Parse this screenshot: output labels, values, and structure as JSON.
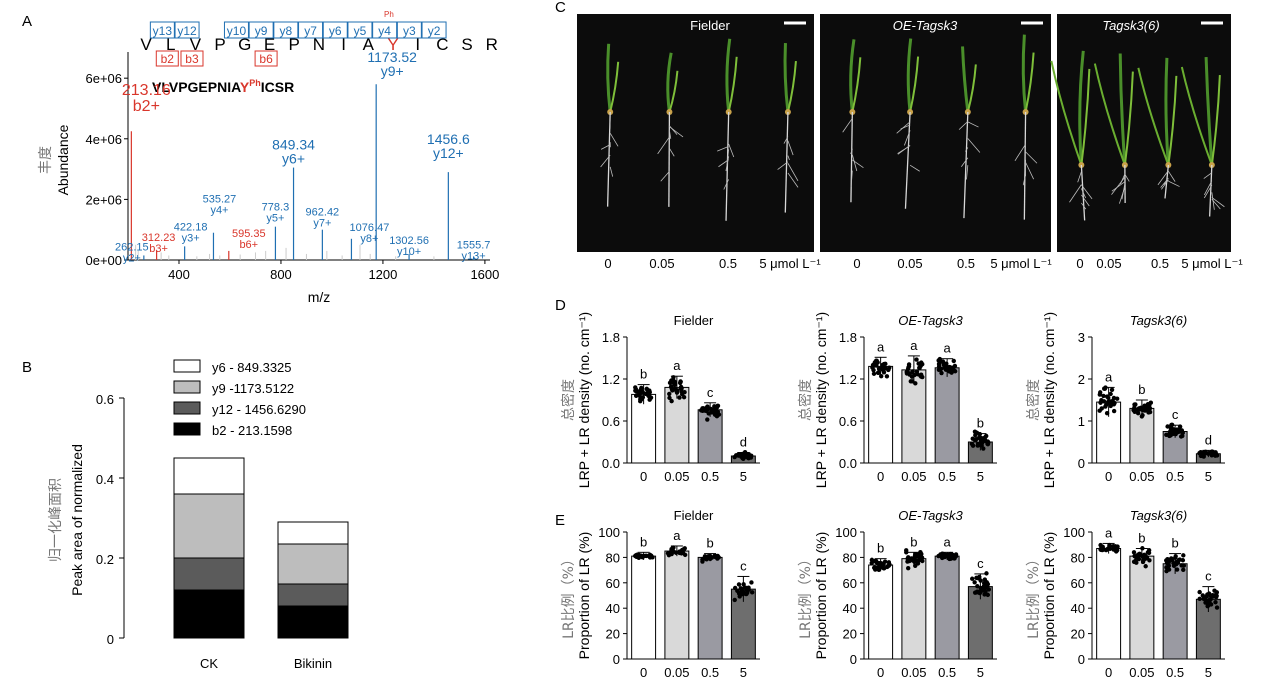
{
  "panel_letters": [
    "A",
    "B",
    "C",
    "D",
    "E"
  ],
  "colors": {
    "blue": "#1f6fb2",
    "red": "#d9362b",
    "bar0": "#ffffff",
    "bar1": "#d9d9d9",
    "bar2": "#9a9aa2",
    "bar3": "#6e6e6e",
    "stack_b2": "#000000",
    "stack_y12": "#5b5b5b",
    "stack_y9": "#bdbdbd",
    "stack_y6": "#ffffff"
  },
  "panelA": {
    "sequence": [
      "V",
      "L",
      "V",
      "P",
      "G",
      "E",
      "P",
      "N",
      "I",
      "A",
      "Y",
      "I",
      "C",
      "S",
      "R"
    ],
    "y_ions_top": [
      "y13",
      "y12",
      "y10",
      "y9",
      "y8",
      "y7",
      "y6",
      "y5",
      "y4",
      "y3",
      "y2"
    ],
    "y5_sub": "Ph",
    "b_ions": [
      "b2",
      "b3",
      "b6"
    ],
    "peptide_prefix": "VLVPGEPNIA",
    "peptide_mod": "Y",
    "peptide_mod_sup": "Ph",
    "peptide_suffix": "ICSR",
    "ylabel_cn": "丰度",
    "ylabel": "Abundance",
    "xlabel": "m/z",
    "yticks": [
      "0e+00",
      "2e+06",
      "4e+06",
      "6e+06"
    ],
    "xticks": [
      "400",
      "800",
      "1200",
      "1600"
    ]
  },
  "panelB": {
    "ylabel_cn": "归一化峰面积",
    "ylabel": "Peak area of normalized",
    "yticks": [
      "0",
      "0.2",
      "0.4",
      "0.6"
    ],
    "legend": [
      "y6 - 849.3325",
      "y9 -1173.5122",
      "y12 - 1456.6290",
      "b2 - 213.1598"
    ]
  },
  "panelC": {
    "titles": [
      "Fielder",
      "OE-Tagsk3",
      "Tagsk3(6)"
    ],
    "conc_labels": [
      "0",
      "0.05",
      "0.5",
      "5 μmol L⁻¹"
    ]
  },
  "panelD": {
    "ylabel_cn": "总密度",
    "ylabel": "LRP + LR density (no. cm⁻¹)",
    "xticks": [
      "0",
      "0.05",
      "0.5",
      "5"
    ]
  },
  "panelE": {
    "ylabel_cn": "LR比例（%）",
    "ylabel": "Proportion of LR (%)",
    "xticks": [
      "0",
      "0.05",
      "0.5",
      "5"
    ]
  },
  "chart_data": [
    {
      "id": "A",
      "type": "bar",
      "subtype": "mass-spectrum",
      "title": "VLVPGEPNIAY(Ph)ICSR",
      "xlabel": "m/z",
      "ylabel": "Abundance",
      "xlim": [
        200,
        1620
      ],
      "ylim": [
        0,
        6600000
      ],
      "x_ticks": [
        400,
        800,
        1200,
        1600
      ],
      "y_ticks": [
        0,
        2000000,
        4000000,
        6000000
      ],
      "peaks": [
        {
          "mz": 213.16,
          "intensity": 4250000,
          "label": "213.16",
          "ion": "b2+",
          "color": "red"
        },
        {
          "mz": 262.15,
          "intensity": 150000,
          "label": "262.15",
          "ion": "y2+",
          "color": "blue"
        },
        {
          "mz": 312.23,
          "intensity": 300000,
          "label": "312.23",
          "ion": "b3+",
          "color": "red"
        },
        {
          "mz": 422.18,
          "intensity": 450000,
          "label": "422.18",
          "ion": "y3+",
          "color": "blue"
        },
        {
          "mz": 535.27,
          "intensity": 900000,
          "label": "535.27",
          "ion": "y4+",
          "color": "blue"
        },
        {
          "mz": 595.35,
          "intensity": 300000,
          "label": "595.35",
          "ion": "b6+",
          "color": "red"
        },
        {
          "mz": 778.3,
          "intensity": 1100000,
          "label": "778.3",
          "ion": "y5+",
          "color": "blue"
        },
        {
          "mz": 849.34,
          "intensity": 3050000,
          "label": "849.34",
          "ion": "y6+",
          "color": "blue"
        },
        {
          "mz": 962.42,
          "intensity": 1000000,
          "label": "962.42",
          "ion": "y7+",
          "color": "blue"
        },
        {
          "mz": 1076.47,
          "intensity": 700000,
          "label": "1076.47",
          "ion": "y8+",
          "color": "blue"
        },
        {
          "mz": 1173.52,
          "intensity": 5800000,
          "label": "1173.52",
          "ion": "y9+",
          "color": "blue"
        },
        {
          "mz": 1302.56,
          "intensity": 200000,
          "label": "1302.56",
          "ion": "y10+",
          "color": "blue"
        },
        {
          "mz": 1456.6,
          "intensity": 2900000,
          "label": "1456.6",
          "ion": "y12+",
          "color": "blue"
        },
        {
          "mz": 1555.7,
          "intensity": 120000,
          "label": "1555.7",
          "ion": "y13+",
          "color": "blue"
        }
      ],
      "minor_peaks": [
        {
          "mz": 230,
          "intensity": 500000
        },
        {
          "mz": 240,
          "intensity": 300000
        },
        {
          "mz": 330,
          "intensity": 250000
        },
        {
          "mz": 360,
          "intensity": 150000
        },
        {
          "mz": 470,
          "intensity": 120000
        },
        {
          "mz": 520,
          "intensity": 200000
        },
        {
          "mz": 560,
          "intensity": 150000
        },
        {
          "mz": 640,
          "intensity": 180000
        },
        {
          "mz": 700,
          "intensity": 250000
        },
        {
          "mz": 740,
          "intensity": 300000
        },
        {
          "mz": 820,
          "intensity": 400000
        },
        {
          "mz": 900,
          "intensity": 200000
        },
        {
          "mz": 980,
          "intensity": 300000
        },
        {
          "mz": 1040,
          "intensity": 150000
        },
        {
          "mz": 1110,
          "intensity": 500000
        },
        {
          "mz": 1150,
          "intensity": 200000
        },
        {
          "mz": 1250,
          "intensity": 120000
        },
        {
          "mz": 1400,
          "intensity": 120000
        }
      ]
    },
    {
      "id": "B",
      "type": "bar",
      "subtype": "stacked",
      "ylabel": "Peak area of normalized",
      "ylim": [
        0,
        0.6
      ],
      "y_ticks": [
        0,
        0.2,
        0.4,
        0.6
      ],
      "categories": [
        "CK",
        "Bikinin"
      ],
      "series": [
        {
          "name": "b2 - 213.1598",
          "values": [
            0.12,
            0.08
          ]
        },
        {
          "name": "y12 - 1456.6290",
          "values": [
            0.08,
            0.055
          ]
        },
        {
          "name": "y9 -1173.5122",
          "values": [
            0.16,
            0.1
          ]
        },
        {
          "name": "y6 - 849.3325",
          "values": [
            0.09,
            0.055
          ]
        }
      ],
      "legend_position": "top"
    },
    {
      "id": "D1",
      "type": "bar",
      "title": "Fielder",
      "ylabel": "LRP + LR density (no. cm⁻¹)",
      "categories": [
        "0",
        "0.05",
        "0.5",
        "5"
      ],
      "values": [
        0.98,
        1.08,
        0.76,
        0.1
      ],
      "errors": [
        0.14,
        0.16,
        0.1,
        0.05
      ],
      "letters": [
        "b",
        "a",
        "c",
        "d"
      ],
      "ylim": [
        0,
        1.8
      ],
      "y_ticks": [
        0,
        0.6,
        1.2,
        1.8
      ],
      "y_tick_labels": [
        "0.0",
        "0.6",
        "1.2",
        "1.8"
      ],
      "points_per_group": 30,
      "point_spread": [
        0.15,
        0.18,
        0.12,
        0.06
      ]
    },
    {
      "id": "D2",
      "type": "bar",
      "title": "OE-Tagsk3",
      "ylabel": "LRP + LR density (no. cm⁻¹)",
      "categories": [
        "0",
        "0.05",
        "0.5",
        "5"
      ],
      "values": [
        1.38,
        1.33,
        1.36,
        0.3
      ],
      "errors": [
        0.13,
        0.2,
        0.13,
        0.12
      ],
      "letters": [
        "a",
        "a",
        "a",
        "b"
      ],
      "ylim": [
        0,
        1.8
      ],
      "y_ticks": [
        0,
        0.6,
        1.2,
        1.8
      ],
      "y_tick_labels": [
        "0.0",
        "0.6",
        "1.2",
        "1.8"
      ],
      "points_per_group": 30,
      "point_spread": [
        0.14,
        0.25,
        0.14,
        0.14
      ]
    },
    {
      "id": "D3",
      "type": "bar",
      "title": "Tagsk3(6)",
      "ylabel": "LRP + LR density (no. cm⁻¹)",
      "categories": [
        "0",
        "0.05",
        "0.5",
        "5"
      ],
      "values": [
        1.45,
        1.3,
        0.75,
        0.22
      ],
      "errors": [
        0.35,
        0.2,
        0.15,
        0.08
      ],
      "letters": [
        "a",
        "b",
        "c",
        "d"
      ],
      "ylim": [
        0,
        3
      ],
      "y_ticks": [
        0,
        1,
        2,
        3
      ],
      "y_tick_labels": [
        "0",
        "1",
        "2",
        "3"
      ],
      "points_per_group": 30,
      "point_spread": [
        0.4,
        0.25,
        0.18,
        0.08
      ]
    },
    {
      "id": "E1",
      "type": "bar",
      "title": "Fielder",
      "ylabel": "Proportion of LR (%)",
      "categories": [
        "0",
        "0.05",
        "0.5",
        "5"
      ],
      "values": [
        81,
        85,
        80,
        55
      ],
      "errors": [
        3,
        4,
        3,
        10
      ],
      "letters": [
        "b",
        "a",
        "b",
        "c"
      ],
      "ylim": [
        0,
        100
      ],
      "y_ticks": [
        0,
        20,
        40,
        60,
        80,
        100
      ],
      "y_tick_labels": [
        "0",
        "20",
        "40",
        "60",
        "80",
        "100"
      ],
      "points_per_group": 22,
      "point_spread": [
        3,
        4,
        3,
        11
      ]
    },
    {
      "id": "E2",
      "type": "bar",
      "title": "OE-Tagsk3",
      "ylabel": "Proportion of LR (%)",
      "categories": [
        "0",
        "0.05",
        "0.5",
        "5"
      ],
      "values": [
        74,
        79,
        81,
        57
      ],
      "errors": [
        5,
        5,
        3,
        10
      ],
      "letters": [
        "b",
        "b",
        "a",
        "c"
      ],
      "ylim": [
        0,
        100
      ],
      "y_ticks": [
        0,
        20,
        40,
        60,
        80,
        100
      ],
      "y_tick_labels": [
        "0",
        "20",
        "40",
        "60",
        "80",
        "100"
      ],
      "points_per_group": 30,
      "point_spread": [
        6,
        7,
        3,
        12
      ]
    },
    {
      "id": "E3",
      "type": "bar",
      "title": "Tagsk3(6)",
      "ylabel": "Proportion of LR (%)",
      "categories": [
        "0",
        "0.05",
        "0.5",
        "5"
      ],
      "values": [
        87,
        81,
        75,
        47
      ],
      "errors": [
        4,
        6,
        8,
        10
      ],
      "letters": [
        "a",
        "b",
        "b",
        "c"
      ],
      "ylim": [
        0,
        100
      ],
      "y_ticks": [
        0,
        20,
        40,
        60,
        80,
        100
      ],
      "y_tick_labels": [
        "0",
        "20",
        "40",
        "60",
        "80",
        "100"
      ],
      "points_per_group": 26,
      "point_spread": [
        4,
        7,
        9,
        11
      ]
    }
  ]
}
